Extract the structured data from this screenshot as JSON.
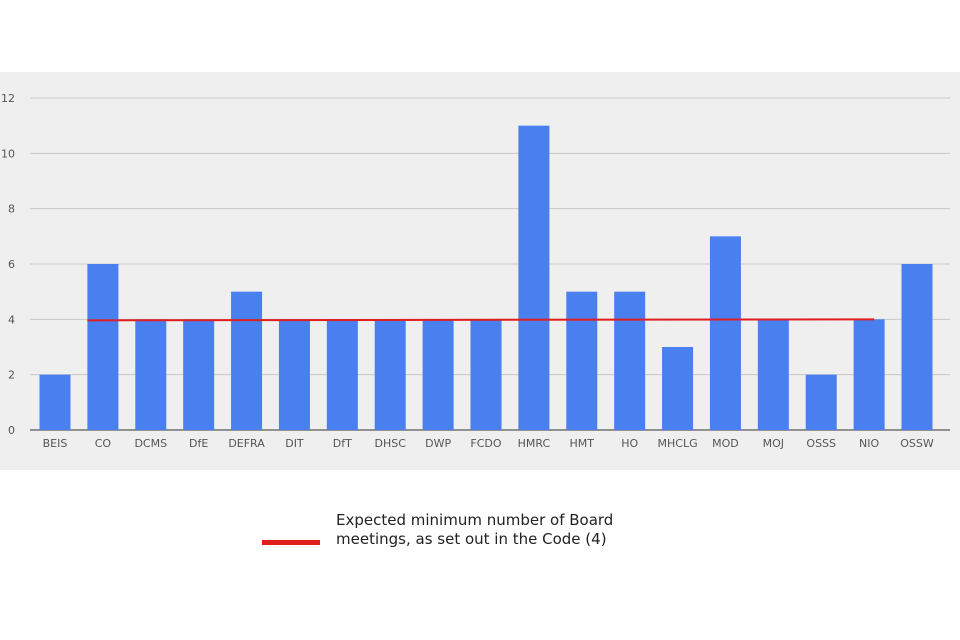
{
  "chart_data": {
    "type": "bar",
    "categories": [
      "BEIS",
      "CO",
      "DCMS",
      "DfE",
      "DEFRA",
      "DIT",
      "DfT",
      "DHSC",
      "DWP",
      "FCDO",
      "HMRC",
      "HMT",
      "HO",
      "MHCLG",
      "MOD",
      "MOJ",
      "OSSS",
      "NIO",
      "OSSW"
    ],
    "values": [
      2,
      6,
      4,
      4,
      5,
      4,
      4,
      4,
      4,
      4,
      11,
      5,
      5,
      3,
      7,
      4,
      2,
      4,
      6
    ],
    "ylim": [
      0,
      12
    ],
    "yticks": [
      0,
      2,
      4,
      6,
      8,
      10,
      12
    ],
    "grid": true,
    "bar_color": "#4a7ff0",
    "reference_line": {
      "value": 4,
      "color": "#e01e1e",
      "label": "Expected minimum number of Board meetings, as set out in the Code (4)"
    },
    "legend_position": "bottom"
  }
}
